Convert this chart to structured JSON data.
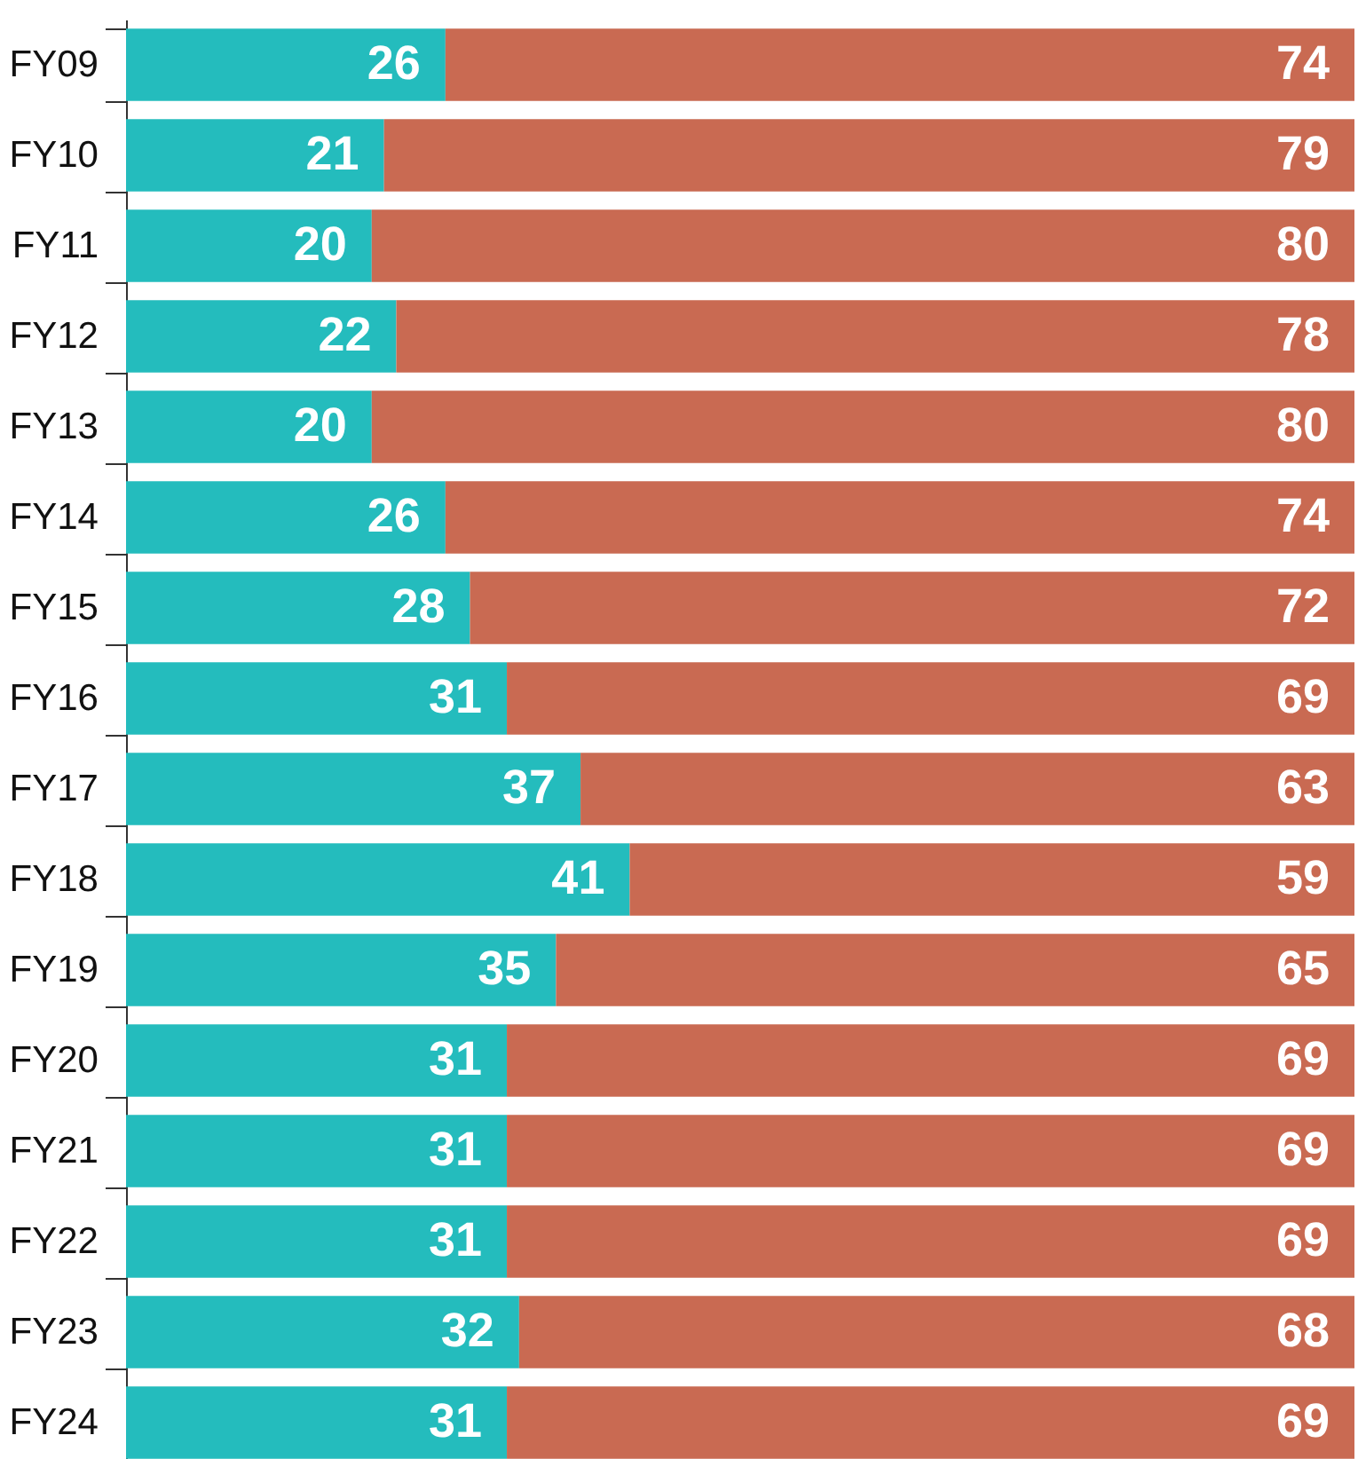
{
  "chart_data": {
    "type": "bar",
    "orientation": "horizontal",
    "stacked": true,
    "data_labels": true,
    "legend": false,
    "categories": [
      "FY09",
      "FY10",
      "FY11",
      "FY12",
      "FY13",
      "FY14",
      "FY15",
      "FY16",
      "FY17",
      "FY18",
      "FY19",
      "FY20",
      "FY21",
      "FY22",
      "FY23",
      "FY24"
    ],
    "series": [
      {
        "color": "#24bcbd",
        "values": [
          26,
          21,
          20,
          22,
          20,
          26,
          28,
          31,
          37,
          41,
          35,
          31,
          31,
          31,
          32,
          31
        ]
      },
      {
        "color": "#c96a52",
        "values": [
          74,
          79,
          80,
          78,
          80,
          74,
          72,
          69,
          63,
          59,
          65,
          69,
          69,
          69,
          68,
          69
        ]
      }
    ]
  }
}
